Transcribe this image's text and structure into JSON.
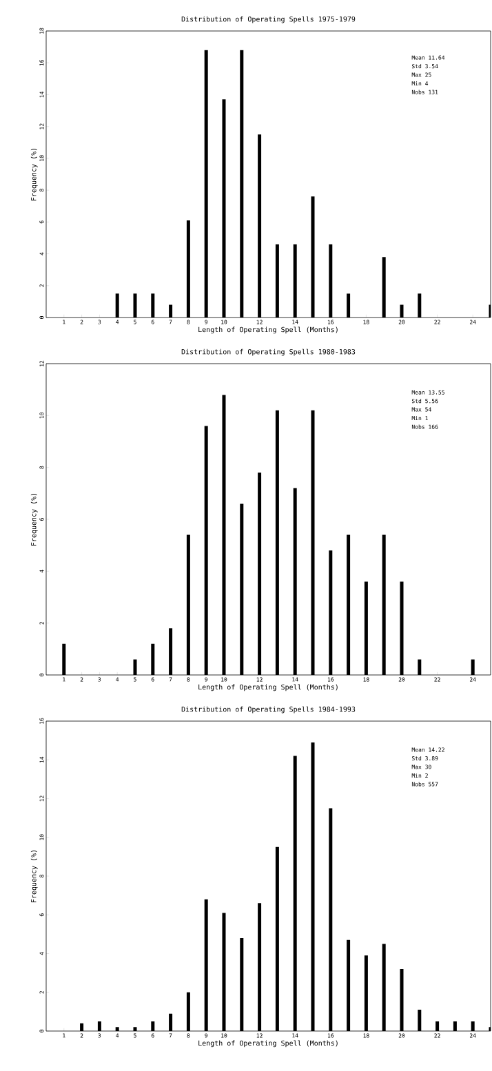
{
  "chart_data": [
    {
      "type": "bar",
      "title": "Distribution of Operating Spells 1975-1979",
      "xlabel": "Length of Operating Spell (Months)",
      "ylabel": "Frequency (%)",
      "color": "#000000",
      "x": [
        1,
        2,
        3,
        4,
        5,
        6,
        7,
        8,
        9,
        10,
        11,
        12,
        13,
        14,
        15,
        16,
        17,
        18,
        19,
        20,
        21,
        22,
        23,
        24,
        25
      ],
      "values": [
        0,
        0,
        0,
        1.5,
        1.5,
        1.5,
        0.8,
        6.1,
        16.8,
        13.7,
        16.8,
        11.5,
        4.6,
        4.6,
        7.6,
        4.6,
        1.5,
        0,
        3.8,
        0.8,
        1.5,
        0,
        0,
        0,
        0.8
      ],
      "xlim": [
        0,
        25
      ],
      "xticks": [
        1,
        2,
        3,
        4,
        5,
        6,
        7,
        8,
        9,
        10,
        12,
        14,
        16,
        18,
        20,
        22,
        24
      ],
      "ylim": [
        0,
        18
      ],
      "yticks": [
        0,
        2,
        4,
        6,
        8,
        10,
        12,
        14,
        16,
        18
      ],
      "annotations": [
        "Mean 11.64",
        "Std 3.54",
        "Max 25",
        "Min 4",
        "Nobs 131"
      ]
    },
    {
      "type": "bar",
      "title": "Distribution of Operating Spells 1980-1983",
      "xlabel": "Length of Operating Spell (Months)",
      "ylabel": "Frequency (%)",
      "color": "#000000",
      "x": [
        1,
        2,
        3,
        4,
        5,
        6,
        7,
        8,
        9,
        10,
        11,
        12,
        13,
        14,
        15,
        16,
        17,
        18,
        19,
        20,
        21,
        22,
        23,
        24,
        25
      ],
      "values": [
        1.2,
        0,
        0,
        0,
        0.6,
        1.2,
        1.8,
        5.4,
        9.6,
        10.8,
        6.6,
        7.8,
        10.2,
        7.2,
        10.2,
        4.8,
        5.4,
        3.6,
        5.4,
        3.6,
        0.6,
        0,
        0,
        0.6,
        0
      ],
      "xlim": [
        0,
        25
      ],
      "xticks": [
        1,
        2,
        3,
        4,
        5,
        6,
        7,
        8,
        9,
        10,
        12,
        14,
        16,
        18,
        20,
        22,
        24
      ],
      "ylim": [
        0,
        12
      ],
      "yticks": [
        0,
        2,
        4,
        6,
        8,
        10,
        12
      ],
      "annotations": [
        "Mean 13.55",
        "Std 5.56",
        "Max 54",
        "Min 1",
        "Nobs 166"
      ]
    },
    {
      "type": "bar",
      "title": "Distribution of Operating Spells 1984-1993",
      "xlabel": "Length of Operating Spell (Months)",
      "ylabel": "Frequency (%)",
      "color": "#000000",
      "x": [
        1,
        2,
        3,
        4,
        5,
        6,
        7,
        8,
        9,
        10,
        11,
        12,
        13,
        14,
        15,
        16,
        17,
        18,
        19,
        20,
        21,
        22,
        23,
        24,
        25
      ],
      "values": [
        0,
        0.4,
        0.5,
        0.2,
        0.2,
        0.5,
        0.9,
        2.0,
        6.8,
        6.1,
        4.8,
        6.6,
        9.5,
        14.2,
        14.9,
        11.5,
        4.7,
        3.9,
        4.5,
        3.2,
        1.1,
        0.5,
        0.5,
        0.5,
        0.2
      ],
      "xlim": [
        0,
        25
      ],
      "xticks": [
        1,
        2,
        3,
        4,
        5,
        6,
        7,
        8,
        9,
        10,
        12,
        14,
        16,
        18,
        20,
        22,
        24
      ],
      "ylim": [
        0,
        16
      ],
      "yticks": [
        0,
        2,
        4,
        6,
        8,
        10,
        12,
        14,
        16
      ],
      "annotations": [
        "Mean 14.22",
        "Std 3.89",
        "Max 30",
        "Min 2",
        "Nobs 557"
      ]
    }
  ]
}
